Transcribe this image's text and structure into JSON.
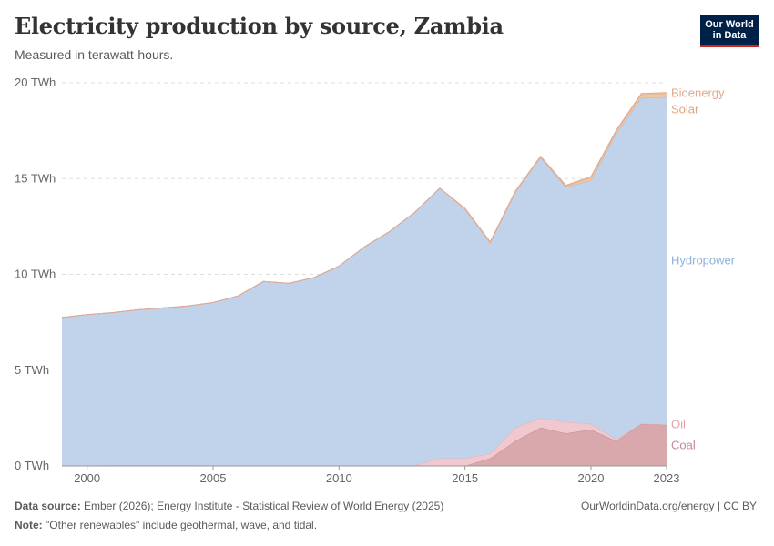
{
  "header": {
    "title": "Electricity production by source, Zambia",
    "subtitle": "Measured in terawatt-hours.",
    "logo_line1": "Our World",
    "logo_line2": "in Data"
  },
  "footer": {
    "source_label": "Data source:",
    "source_text": "Ember (2026); Energy Institute - Statistical Review of World Energy (2025)",
    "note_label": "Note:",
    "note_text": "\"Other renewables\" include geothermal, wave, and tidal.",
    "credit": "OurWorldinData.org/energy | CC BY"
  },
  "chart_data": {
    "type": "area",
    "stacked": true,
    "x": [
      2000,
      2001,
      2002,
      2003,
      2004,
      2005,
      2006,
      2007,
      2008,
      2009,
      2010,
      2011,
      2012,
      2013,
      2014,
      2015,
      2016,
      2017,
      2018,
      2019,
      2020,
      2021,
      2022,
      2023
    ],
    "x_start": 1999,
    "xlim": [
      1999,
      2023
    ],
    "ylim": [
      0,
      20
    ],
    "y_ticks": [
      0,
      5,
      10,
      15,
      20
    ],
    "y_tick_labels": [
      "0 TWh",
      "5 TWh",
      "10 TWh",
      "15 TWh",
      "20 TWh"
    ],
    "x_ticks": [
      2000,
      2005,
      2010,
      2015,
      2020,
      2023
    ],
    "x_tick_labels": [
      "2000",
      "2005",
      "2010",
      "2015",
      "2020",
      "2023"
    ],
    "grid": true,
    "series": [
      {
        "name": "Coal",
        "color": "#d8a8ad",
        "stroke": "#c48a93",
        "values": [
          0,
          0,
          0,
          0,
          0,
          0,
          0,
          0,
          0,
          0,
          0,
          0,
          0,
          0,
          0,
          0,
          0.4,
          1.3,
          2.0,
          1.7,
          1.9,
          1.3,
          2.2,
          2.15
        ],
        "start": 0
      },
      {
        "name": "Oil",
        "color": "#f0c8cd",
        "stroke": "#e6b0b8",
        "values": [
          0.03,
          0.05,
          0.05,
          0.05,
          0.05,
          0.03,
          0.03,
          0.03,
          0.03,
          0.03,
          0.03,
          0.03,
          0.03,
          0.03,
          0.4,
          0.4,
          0.25,
          0.7,
          0.5,
          0.6,
          0.3,
          0.1,
          0.01,
          0.01
        ],
        "start": 0.02
      },
      {
        "name": "Hydropower",
        "color": "#c0d3ea",
        "stroke": "#a7bbd4",
        "values": [
          7.87,
          7.95,
          8.1,
          8.2,
          8.3,
          8.5,
          8.85,
          9.6,
          9.5,
          9.8,
          10.4,
          11.4,
          12.2,
          13.2,
          14.1,
          13.0,
          11.0,
          12.3,
          13.6,
          12.25,
          12.7,
          15.95,
          17.0,
          17.1
        ],
        "start": 7.73
      },
      {
        "name": "Solar",
        "color": "#f2c79e",
        "stroke": "#e6ad7d",
        "values": [
          0,
          0,
          0,
          0,
          0,
          0,
          0,
          0,
          0,
          0,
          0,
          0,
          0,
          0,
          0,
          0,
          0,
          0,
          0.02,
          0.05,
          0.15,
          0.12,
          0.18,
          0.18
        ],
        "start": 0
      },
      {
        "name": "Bioenergy",
        "color": "#efc9b8",
        "stroke": "#dfa994",
        "values": [
          0,
          0,
          0,
          0,
          0,
          0,
          0,
          0,
          0,
          0,
          0,
          0,
          0,
          0,
          0,
          0.05,
          0.05,
          0.05,
          0.05,
          0.05,
          0.05,
          0.05,
          0.05,
          0.05
        ],
        "start": 0
      }
    ]
  }
}
